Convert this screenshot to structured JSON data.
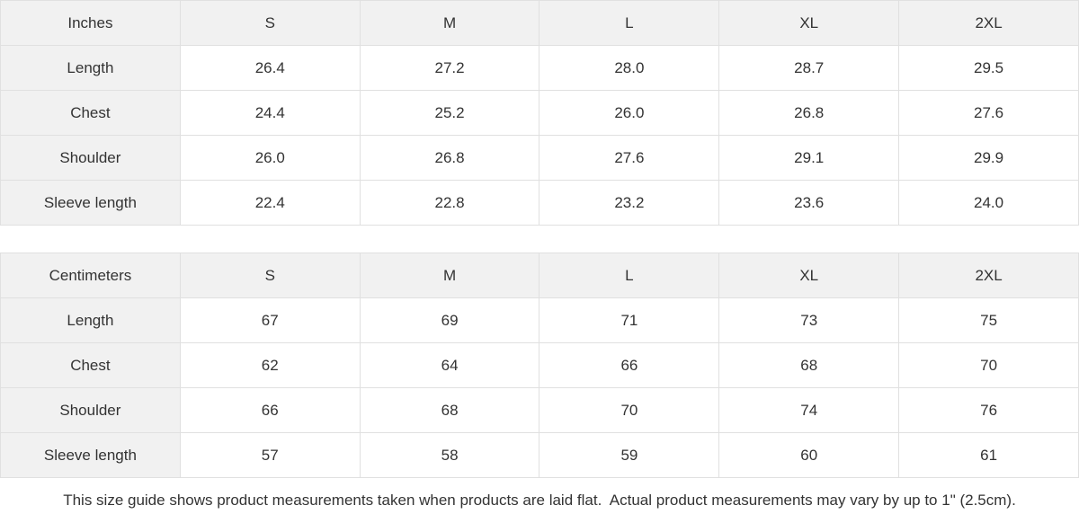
{
  "colors": {
    "header_bg": "#f1f1f1",
    "cell_bg": "#ffffff",
    "border": "#e0e0e0",
    "text": "#333333"
  },
  "tables": [
    {
      "unit_label": "Inches",
      "columns": [
        "S",
        "M",
        "L",
        "XL",
        "2XL"
      ],
      "rows": [
        {
          "label": "Length",
          "values": [
            "26.4",
            "27.2",
            "28.0",
            "28.7",
            "29.5"
          ]
        },
        {
          "label": "Chest",
          "values": [
            "24.4",
            "25.2",
            "26.0",
            "26.8",
            "27.6"
          ]
        },
        {
          "label": "Shoulder",
          "values": [
            "26.0",
            "26.8",
            "27.6",
            "29.1",
            "29.9"
          ]
        },
        {
          "label": "Sleeve length",
          "values": [
            "22.4",
            "22.8",
            "23.2",
            "23.6",
            "24.0"
          ]
        }
      ]
    },
    {
      "unit_label": "Centimeters",
      "columns": [
        "S",
        "M",
        "L",
        "XL",
        "2XL"
      ],
      "rows": [
        {
          "label": "Length",
          "values": [
            "67",
            "69",
            "71",
            "73",
            "75"
          ]
        },
        {
          "label": "Chest",
          "values": [
            "62",
            "64",
            "66",
            "68",
            "70"
          ]
        },
        {
          "label": "Shoulder",
          "values": [
            "66",
            "68",
            "70",
            "74",
            "76"
          ]
        },
        {
          "label": "Sleeve length",
          "values": [
            "57",
            "58",
            "59",
            "60",
            "61"
          ]
        }
      ]
    }
  ],
  "footer": {
    "note": "This size guide shows product measurements taken when products are laid flat.  Actual product measurements may vary by up to 1\" (2.5cm)."
  }
}
